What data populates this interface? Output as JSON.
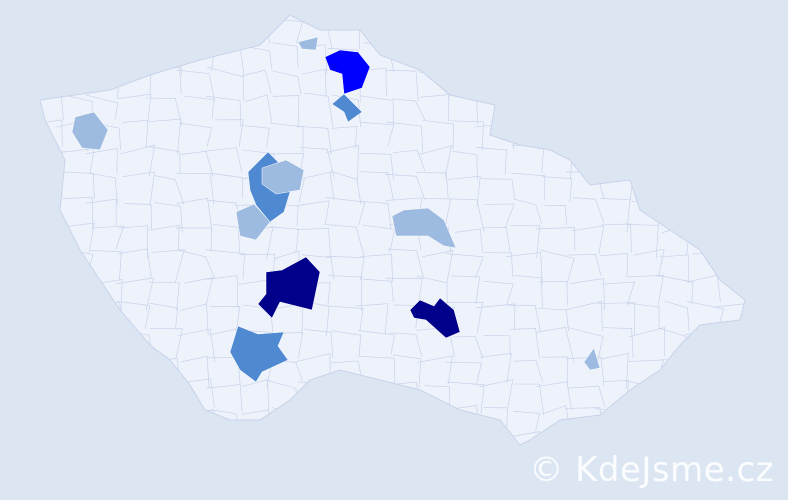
{
  "map": {
    "base_color": "#eef2fa",
    "border_color": "#c8d2ea",
    "background_color": "#dce6f3",
    "level_colors": {
      "low": "#9dbbe0",
      "medium": "#4f89d2",
      "high": "#0000ff",
      "highest": "#00008b"
    },
    "highlighted_regions": [
      {
        "id": "r1",
        "level": "low"
      },
      {
        "id": "r2",
        "level": "high"
      },
      {
        "id": "r3",
        "level": "medium"
      },
      {
        "id": "r4",
        "level": "low"
      },
      {
        "id": "r5",
        "level": "medium"
      },
      {
        "id": "r6",
        "level": "low"
      },
      {
        "id": "r7",
        "level": "low"
      },
      {
        "id": "r8",
        "level": "low"
      },
      {
        "id": "r9",
        "level": "highest"
      },
      {
        "id": "r10",
        "level": "highest"
      },
      {
        "id": "r11",
        "level": "medium"
      },
      {
        "id": "r12",
        "level": "low"
      }
    ]
  },
  "watermark": "© KdeJsme.cz"
}
